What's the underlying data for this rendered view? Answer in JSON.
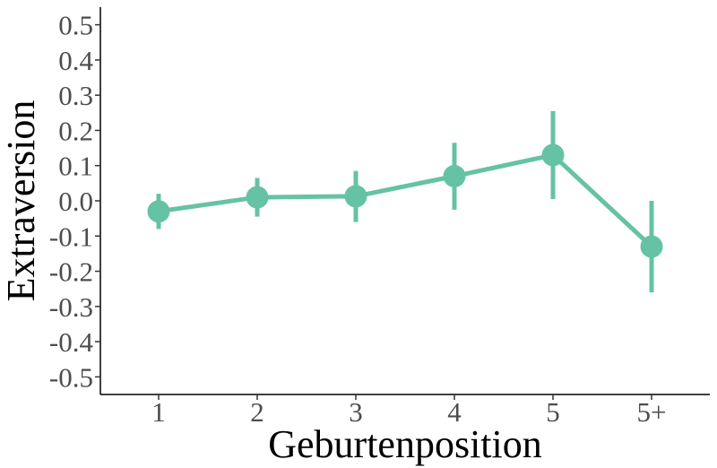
{
  "chart_data": {
    "type": "line",
    "title": "",
    "xlabel": "Geburtenposition",
    "ylabel": "Extraversion",
    "categories": [
      "1",
      "2",
      "3",
      "4",
      "5",
      "5+"
    ],
    "y_ticks": [
      "-0.5",
      "-0.4",
      "-0.3",
      "-0.2",
      "-0.1",
      "0.0",
      "0.1",
      "0.2",
      "0.3",
      "0.4",
      "0.5"
    ],
    "ylim": [
      -0.55,
      0.55
    ],
    "grid": false,
    "legend": "none",
    "series": [
      {
        "color": "#66c2a5",
        "values": [
          -0.03,
          0.01,
          0.013,
          0.07,
          0.13,
          -0.13
        ],
        "error_low": [
          -0.08,
          -0.045,
          -0.06,
          -0.025,
          0.005,
          -0.26
        ],
        "error_high": [
          0.02,
          0.065,
          0.085,
          0.165,
          0.255,
          0.0
        ]
      }
    ]
  }
}
